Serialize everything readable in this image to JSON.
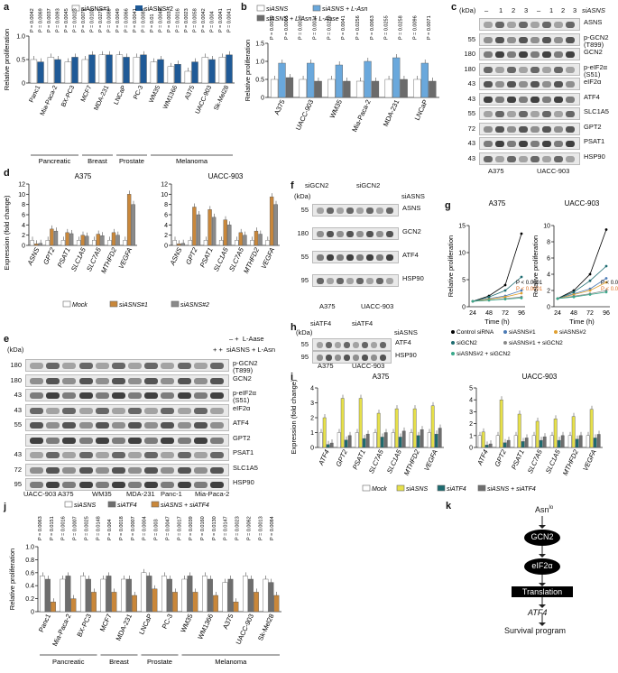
{
  "panels": {
    "a": "a",
    "b": "b",
    "c": "c",
    "d": "d",
    "e": "e",
    "f": "f",
    "g": "g",
    "h": "h",
    "i": "i",
    "j": "j",
    "k": "k"
  },
  "colors": {
    "white": "#ffffff",
    "blue_dark": "#1f5a97",
    "blue_light": "#6aa8dc",
    "gray_dark": "#6b6b6b",
    "orange": "#c9873a",
    "gray_mid": "#8a8a8a",
    "yellow": "#e6e04a",
    "teal": "#1d6b70",
    "gray_bar": "#6e6e6e"
  },
  "chart_data": [
    {
      "panel": "a",
      "type": "bar",
      "ylabel": "Relative proliferation",
      "ylim": [
        0,
        1.0
      ],
      "yticks": [
        "0",
        "0.5",
        "1.0"
      ],
      "legend": [
        "siASNS#1",
        "siASNS#2"
      ],
      "categories": [
        "Panc1",
        "Mia-Paca-2",
        "BX-PC3",
        "MCF7",
        "MDA-231",
        "LNCaP",
        "PC-3",
        "WM35",
        "WM1366",
        "A375",
        "UACC-903",
        "Sk-Mel28"
      ],
      "groups": [
        {
          "label": "Pancreatic",
          "start": 0,
          "end": 2
        },
        {
          "label": "Breast",
          "start": 3,
          "end": 4
        },
        {
          "label": "Prostate",
          "start": 5,
          "end": 6
        },
        {
          "label": "Melanoma",
          "start": 7,
          "end": 11
        }
      ],
      "series": [
        {
          "name": "siASNS#1",
          "values": [
            0.5,
            0.55,
            0.45,
            0.5,
            0.6,
            0.6,
            0.55,
            0.45,
            0.35,
            0.25,
            0.55,
            0.55
          ]
        },
        {
          "name": "siASNS#2",
          "values": [
            0.45,
            0.5,
            0.55,
            0.6,
            0.6,
            0.55,
            0.6,
            0.5,
            0.4,
            0.45,
            0.5,
            0.6
          ]
        }
      ],
      "pvalues": [
        "P = 0.0042",
        "P = 0.0069",
        "P = 0.0037",
        "P = 0.0093",
        "P = 0.0045",
        "P = 0.0023",
        "P = 0.0079",
        "P = 0.0102",
        "P = 0.0271",
        "P = 0.0089",
        "P = 0.0049",
        "P = 0.0066",
        "P = 0.0041",
        "P = 0.0085",
        "P = 0.01",
        "P = 0.0048",
        "P = 0.003",
        "P = 0.0016",
        "P = 0.0023",
        "P = 0.0058",
        "P = 0.0042",
        "P = 0.004",
        "P = 0.0041",
        "P = 0.0041"
      ]
    },
    {
      "panel": "b",
      "type": "bar",
      "ylabel": "Relative proliferation",
      "ylim": [
        0,
        1.5
      ],
      "yticks": [
        "0",
        "0.5",
        "1.0",
        "1.5"
      ],
      "legend": [
        "siASNS",
        "siASNS + L-Asn",
        "siASNS + L-Asn + L-Aase"
      ],
      "categories": [
        "A375",
        "UACC-903",
        "WM35",
        "Mia-Paca-2",
        "MDA-231",
        "LNCaP"
      ],
      "series": [
        {
          "name": "siASNS",
          "values": [
            0.5,
            0.5,
            0.5,
            0.45,
            0.5,
            0.5
          ]
        },
        {
          "name": "siASNS + L-Asn",
          "values": [
            0.95,
            0.95,
            0.9,
            1.0,
            1.1,
            0.95
          ]
        },
        {
          "name": "siASNS + L-Asn + L-Aase",
          "values": [
            0.55,
            0.45,
            0.45,
            0.45,
            0.5,
            0.45
          ]
        }
      ],
      "pvalues": [
        "P = 0.0039",
        "P = 0.0065",
        "P = 0.0019",
        "P = 0.0034",
        "P = 0.0229",
        "P = 0.0041",
        "P = 0.0256",
        "P = 0.0063",
        "P = 0.0255",
        "P = 0.0258",
        "P = 0.0096",
        "P = 0.0071"
      ]
    },
    {
      "panel": "d",
      "type": "bar",
      "ylabel": "Expression (fold change)",
      "legend": [
        "Mock",
        "siASNS#1",
        "siASNS#2"
      ],
      "charts": [
        {
          "title": "A375",
          "ylim": [
            0,
            12
          ],
          "yticks": [
            "0",
            "2",
            "4",
            "6",
            "8",
            "10",
            "12"
          ],
          "categories": [
            "ASNS",
            "GPT2",
            "PSAT1",
            "SLC1A5",
            "SLC7A5",
            "MTHFD2",
            "VEGFA"
          ],
          "series": [
            {
              "name": "Mock",
              "values": [
                1,
                1,
                1,
                1,
                1,
                1,
                1
              ]
            },
            {
              "name": "siASNS#1",
              "values": [
                0.3,
                3.2,
                2.5,
                2.0,
                2.2,
                2.5,
                10.0
              ]
            },
            {
              "name": "siASNS#2",
              "values": [
                0.4,
                2.8,
                2.3,
                1.8,
                1.9,
                2.0,
                8.0
              ]
            }
          ]
        },
        {
          "title": "UACC-903",
          "ylim": [
            0,
            12
          ],
          "yticks": [
            "0",
            "2",
            "4",
            "6",
            "8",
            "10",
            "12"
          ],
          "categories": [
            "ASNS",
            "GPT2",
            "PSAT1",
            "SLC1A5",
            "SLC7A5",
            "MTHFD2",
            "VEGFA"
          ],
          "series": [
            {
              "name": "Mock",
              "values": [
                1,
                1,
                1,
                1,
                1,
                1,
                1
              ]
            },
            {
              "name": "siASNS#1",
              "values": [
                0.3,
                7.5,
                7.0,
                5.0,
                2.5,
                2.8,
                9.5
              ]
            },
            {
              "name": "siASNS#2",
              "values": [
                0.4,
                6.0,
                5.5,
                4.0,
                2.0,
                2.2,
                8.0
              ]
            }
          ]
        }
      ]
    },
    {
      "panel": "g",
      "type": "line",
      "ylabel": "Relative proliferation",
      "xlabel": "Time (h)",
      "x": [
        24,
        48,
        72,
        96
      ],
      "legend": [
        "Control siRNA",
        "siASNS#1",
        "siASNS#2",
        "siGCN2",
        "siASNS#1 + siGCN2",
        "siASNS#2 + siGCN2"
      ],
      "charts": [
        {
          "title": "A375",
          "ylim": [
            0,
            15
          ],
          "yticks": [
            "0",
            "5",
            "10",
            "15"
          ],
          "series": [
            {
              "name": "Control siRNA",
              "values": [
                1,
                2,
                4,
                13.5
              ]
            },
            {
              "name": "siASNS#1",
              "values": [
                1,
                1.5,
                2,
                3
              ]
            },
            {
              "name": "siASNS#2",
              "values": [
                1,
                1.4,
                1.8,
                2.5
              ]
            },
            {
              "name": "siGCN2",
              "values": [
                1,
                1.8,
                3.0,
                5.5
              ]
            },
            {
              "name": "siASNS#1 + siGCN2",
              "values": [
                1,
                1.2,
                1.5,
                1.8
              ]
            },
            {
              "name": "siASNS#2 + siGCN2",
              "values": [
                1,
                1.2,
                1.4,
                1.6
              ]
            }
          ],
          "annotations": [
            "P < 0.0001",
            "P < 0.0001"
          ]
        },
        {
          "title": "UACC-903",
          "ylim": [
            0,
            10
          ],
          "yticks": [
            "0",
            "2",
            "4",
            "6",
            "8",
            "10"
          ],
          "series": [
            {
              "name": "Control siRNA",
              "values": [
                1,
                2,
                4,
                9.5
              ]
            },
            {
              "name": "siASNS#1",
              "values": [
                1,
                1.6,
                2.2,
                3.5
              ]
            },
            {
              "name": "siASNS#2",
              "values": [
                1,
                1.5,
                2.0,
                3.0
              ]
            },
            {
              "name": "siGCN2",
              "values": [
                1,
                1.8,
                3.2,
                5.0
              ]
            },
            {
              "name": "siASNS#1 + siGCN2",
              "values": [
                1,
                1.3,
                1.6,
                2.0
              ]
            },
            {
              "name": "siASNS#2 + siGCN2",
              "values": [
                1,
                1.2,
                1.5,
                1.8
              ]
            }
          ],
          "annotations": [
            "P < 0.0001",
            "P < 0.0001"
          ]
        }
      ]
    },
    {
      "panel": "i",
      "type": "bar",
      "ylabel": "Expression (fold change)",
      "legend": [
        "Mock",
        "siASNS",
        "siATF4",
        "siASNS + siATF4"
      ],
      "charts": [
        {
          "title": "A375",
          "ylim": [
            0,
            4
          ],
          "yticks": [
            "0",
            "1",
            "2",
            "3",
            "4"
          ],
          "categories": [
            "ATF4",
            "GPT2",
            "PSAT1",
            "SLC7A5",
            "SLC1A5",
            "MTHFD2",
            "VEGFA"
          ],
          "series": [
            {
              "name": "Mock",
              "values": [
                1,
                1,
                1,
                1,
                1,
                1,
                1
              ]
            },
            {
              "name": "siASNS",
              "values": [
                2.0,
                3.3,
                3.3,
                2.3,
                2.6,
                2.6,
                2.8
              ]
            },
            {
              "name": "siATF4",
              "values": [
                0.2,
                0.5,
                0.6,
                0.7,
                0.7,
                0.8,
                0.9
              ]
            },
            {
              "name": "siASNS + siATF4",
              "values": [
                0.3,
                0.8,
                0.9,
                1.0,
                1.1,
                1.2,
                1.3
              ]
            }
          ]
        },
        {
          "title": "UACC-903",
          "ylim": [
            0,
            5
          ],
          "yticks": [
            "0",
            "1",
            "2",
            "3",
            "4",
            "5"
          ],
          "categories": [
            "ATF4",
            "GPT2",
            "PSAT1",
            "SLC7A5",
            "SLC1A5",
            "MTHFD2",
            "VEGFA"
          ],
          "series": [
            {
              "name": "Mock",
              "values": [
                1,
                1,
                1,
                1,
                1,
                1,
                1
              ]
            },
            {
              "name": "siASNS",
              "values": [
                1.3,
                4.0,
                2.8,
                2.2,
                2.4,
                2.6,
                3.2
              ]
            },
            {
              "name": "siATF4",
              "values": [
                0.2,
                0.4,
                0.5,
                0.6,
                0.6,
                0.7,
                0.8
              ]
            },
            {
              "name": "siASNS + siATF4",
              "values": [
                0.3,
                0.6,
                0.8,
                0.9,
                1.0,
                1.0,
                1.1
              ]
            }
          ]
        }
      ]
    },
    {
      "panel": "j",
      "type": "bar",
      "ylabel": "Relative proliferation",
      "ylim": [
        0,
        1.0
      ],
      "yticks": [
        "0",
        "0.2",
        "0.4",
        "0.6",
        "0.8",
        "1.0"
      ],
      "legend": [
        "siASNS",
        "siATF4",
        "siASNS + siATF4"
      ],
      "categories": [
        "Panc1",
        "Mia-Paca-2",
        "BX-PC3",
        "MCF7",
        "MDA-231",
        "LNCaP",
        "PC-3",
        "WM35",
        "WM1366",
        "A375",
        "UACC-903",
        "Sk-Mel28"
      ],
      "groups": [
        {
          "label": "Pancreatic",
          "start": 0,
          "end": 2
        },
        {
          "label": "Breast",
          "start": 3,
          "end": 4
        },
        {
          "label": "Prostate",
          "start": 5,
          "end": 6
        },
        {
          "label": "Melanoma",
          "start": 7,
          "end": 11
        }
      ],
      "series": [
        {
          "name": "siASNS",
          "values": [
            0.55,
            0.5,
            0.55,
            0.5,
            0.5,
            0.6,
            0.55,
            0.5,
            0.55,
            0.45,
            0.55,
            0.5
          ]
        },
        {
          "name": "siATF4",
          "values": [
            0.5,
            0.55,
            0.5,
            0.55,
            0.5,
            0.55,
            0.5,
            0.55,
            0.5,
            0.5,
            0.5,
            0.45
          ]
        },
        {
          "name": "siASNS + siATF4",
          "values": [
            0.15,
            0.2,
            0.3,
            0.3,
            0.25,
            0.35,
            0.3,
            0.3,
            0.25,
            0.15,
            0.3,
            0.25
          ]
        }
      ],
      "pvalues": [
        "P = 0.0063",
        "P = 0.0151",
        "P = 0.0016",
        "P = 0.0007",
        "P = 0.0025",
        "P = 0.0148",
        "P = 0.004",
        "P = 0.0018",
        "P = 0.0007",
        "P = 0.0004",
        "P = 0.003",
        "P = 0.0047",
        "P = 0.0017",
        "P = 0.0039",
        "P = 0.0160",
        "P = 0.0130",
        "P = 0.0147",
        "P = 0.0023",
        "P = 0.0062",
        "P = 0.0013",
        "P = 0.0084"
      ]
    }
  ],
  "blots": {
    "c": {
      "header": {
        "kda": "(kDa)",
        "minus": "–",
        "lanes": [
          "1",
          "2",
          "3"
        ],
        "minus2": "–",
        "lanes2": [
          "1",
          "2",
          "3"
        ],
        "si": "siASNS"
      },
      "rows": [
        {
          "kda": "",
          "label": "ASNS"
        },
        {
          "kda": "55",
          "label": "p-GCN2\n(T899)"
        },
        {
          "kda": "180",
          "label": "GCN2"
        },
        {
          "kda": "180",
          "label": "p-eIF2α\n(S51)"
        },
        {
          "kda": "43",
          "label": "eIF2α"
        },
        {
          "kda": "43",
          "label": "ATF4"
        },
        {
          "kda": "55",
          "label": "SLC1A5"
        },
        {
          "kda": "72",
          "label": "GPT2"
        },
        {
          "kda": "43",
          "label": "PSAT1"
        },
        {
          "kda": "43",
          "label": "HSP90"
        }
      ],
      "cells": [
        "A375",
        "UACC-903"
      ]
    },
    "e": {
      "header": {
        "kda": "(kDa)",
        "laase": "L-Aase",
        "asn": "siASNS + L-Asn"
      },
      "rows": [
        {
          "kda": "180",
          "label": "p-GCN2\n(T899)"
        },
        {
          "kda": "180",
          "label": "GCN2"
        },
        {
          "kda": "43",
          "label": "p-eIF2α\n(S51)"
        },
        {
          "kda": "43",
          "label": "eIF2α"
        },
        {
          "kda": "55",
          "label": "ATF4"
        },
        {
          "kda": "",
          "label": "GPT2"
        },
        {
          "kda": "43",
          "label": "PSAT1"
        },
        {
          "kda": "72",
          "label": "SLC1A5"
        },
        {
          "kda": "95",
          "label": "HSP90"
        }
      ],
      "cells": [
        "UACC-903",
        "A375",
        "WM35",
        "MDA-231",
        "Panc-1",
        "Mia-Paca-2"
      ]
    },
    "f": {
      "header": {
        "kda": "(kDa)",
        "gcn2a": "siGCN2",
        "gcn2b": "siGCN2",
        "asns": "siASNS"
      },
      "rows": [
        {
          "kda": "55",
          "label": "ASNS"
        },
        {
          "kda": "180",
          "label": "GCN2"
        },
        {
          "kda": "55",
          "label": "ATF4"
        },
        {
          "kda": "95",
          "label": "HSP90"
        }
      ],
      "cells": [
        "A375",
        "UACC-903"
      ]
    },
    "h": {
      "header": {
        "kda": "(kDa)",
        "atf4a": "siATF4",
        "atf4b": "siATF4",
        "asns": "siASNS"
      },
      "rows": [
        {
          "kda": "55",
          "label": "ATF4"
        },
        {
          "kda": "95",
          "label": "HSP90"
        }
      ],
      "cells": [
        "A375",
        "UACC-903"
      ]
    }
  },
  "flow": {
    "top": "Asn",
    "top_sup": "lo",
    "gcn2": "GCN2",
    "eif2": "eIF2α",
    "translation": "Translation",
    "atf4": "ATF4",
    "survival": "Survival program"
  }
}
